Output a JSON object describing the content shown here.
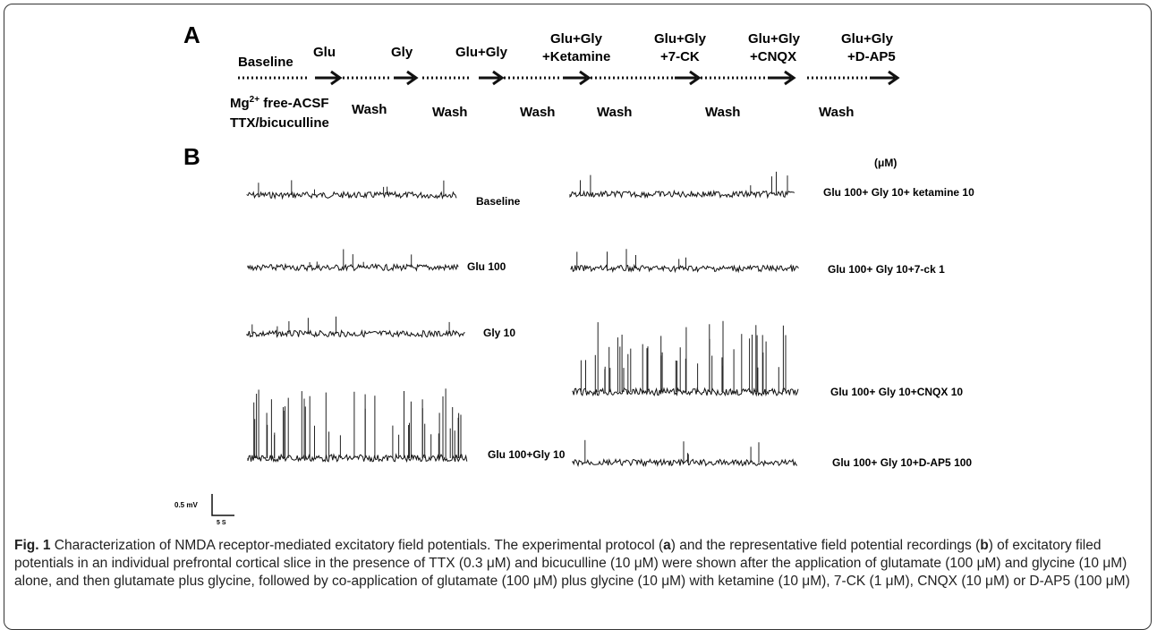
{
  "panel_a": {
    "letter": "A",
    "steps": [
      {
        "top": "",
        "bottom": "Baseline"
      },
      {
        "top": "",
        "bottom": "Glu"
      },
      {
        "top": "",
        "bottom": "Gly"
      },
      {
        "top": "",
        "bottom": "Glu+Gly"
      },
      {
        "top": "Glu+Gly",
        "bottom": "+Ketamine"
      },
      {
        "top": "Glu+Gly",
        "bottom": "+7-CK"
      },
      {
        "top": "Glu+Gly",
        "bottom": "+CNQX"
      },
      {
        "top": "Glu+Gly",
        "bottom": "+D-AP5"
      }
    ],
    "bath_line1_base": "Mg",
    "bath_line1_sup": "2+",
    "bath_line1_rest": " free-ACSF",
    "bath_line2": "TTX/bicuculline",
    "wash_labels": [
      "Wash",
      "Wash",
      "Wash",
      "Wash",
      "Wash",
      "Wash"
    ]
  },
  "panel_b": {
    "letter": "B",
    "unit": "(μM)",
    "left_traces": [
      {
        "label": "Baseline",
        "activity": "low"
      },
      {
        "label": "Glu 100",
        "activity": "low"
      },
      {
        "label": "Gly 10",
        "activity": "low"
      },
      {
        "label": "Glu 100+Gly 10",
        "activity": "high"
      }
    ],
    "right_traces": [
      {
        "label": "Glu 100+ Gly 10+ ketamine 10",
        "activity": "low"
      },
      {
        "label": "Glu 100+ Gly 10+7-ck 1",
        "activity": "low"
      },
      {
        "label": "Glu 100+ Gly 10+CNQX 10",
        "activity": "high"
      },
      {
        "label": "Glu 100+ Gly 10+D-AP5 100",
        "activity": "low"
      }
    ],
    "scale_v": "0.5 mV",
    "scale_h": "5 S"
  },
  "caption": {
    "fig_label": "Fig. 1",
    "title": " Characterization of NMDA receptor-mediated excitatory field potentials. The experimental protocol (",
    "a": "a",
    "mid": ") and the representative field potential recordings (",
    "b": "b",
    "rest": ") of excitatory filed potentials in an individual prefrontal cortical slice in the presence of TTX (0.3 μM) and bicuculline (10 μM) were shown after the application of glutamate (100 μM) and glycine (10 μM) alone, and then glutamate plus glycine, followed by co-application of glutamate (100 μM) plus glycine (10 μM) with ketamine (10 μM), 7-CK (1 μM), CNQX (10 μM) or D-AP5 (100 μM)"
  }
}
